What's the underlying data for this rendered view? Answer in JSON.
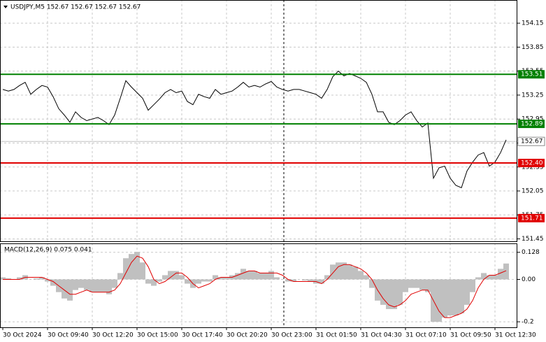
{
  "chart_data": [
    {
      "type": "line",
      "title": "USDJPY,M5  152.67 152.67 152.67 152.67",
      "color": "#000000",
      "values": [
        153.32,
        153.3,
        153.32,
        153.37,
        153.41,
        153.26,
        153.32,
        153.37,
        153.35,
        153.23,
        153.08,
        153.0,
        152.91,
        153.04,
        152.97,
        152.93,
        152.95,
        152.97,
        152.93,
        152.88,
        153.0,
        153.21,
        153.43,
        153.35,
        153.28,
        153.21,
        153.06,
        153.13,
        153.2,
        153.28,
        153.32,
        153.28,
        153.3,
        153.17,
        153.13,
        153.26,
        153.23,
        153.21,
        153.32,
        153.26,
        153.28,
        153.3,
        153.35,
        153.41,
        153.35,
        153.37,
        153.35,
        153.39,
        153.42,
        153.35,
        153.32,
        153.3,
        153.32,
        153.32,
        153.3,
        153.28,
        153.26,
        153.21,
        153.32,
        153.48,
        153.55,
        153.49,
        153.52,
        153.49,
        153.46,
        153.41,
        153.26,
        153.04,
        153.04,
        152.91,
        152.88,
        152.93,
        153.0,
        153.04,
        152.93,
        152.85,
        152.9,
        152.21,
        152.34,
        152.36,
        152.21,
        152.12,
        152.09,
        152.3,
        152.41,
        152.5,
        152.53,
        152.36,
        152.41,
        152.53,
        152.69
      ],
      "xlim": [
        -0.5,
        92
      ],
      "xticks": [
        {
          "value": 0,
          "label": "30 Oct 2024"
        },
        {
          "value": 8,
          "label": "30 Oct 09:40"
        },
        {
          "value": 16,
          "label": "30 Oct 12:20"
        },
        {
          "value": 24,
          "label": "30 Oct 15:00"
        },
        {
          "value": 32,
          "label": "30 Oct 17:40"
        },
        {
          "value": 40,
          "label": "30 Oct 20:20"
        },
        {
          "value": 48,
          "label": "30 Oct 23:00"
        },
        {
          "value": 56,
          "label": "31 Oct 01:50"
        },
        {
          "value": 64,
          "label": "31 Oct 04:30"
        },
        {
          "value": 72,
          "label": "31 Oct 07:10"
        },
        {
          "value": 80,
          "label": "31 Oct 09:50"
        },
        {
          "value": 88,
          "label": "31 Oct 12:30"
        }
      ],
      "ylim": [
        151.42,
        154.44
      ],
      "yticks": [
        154.15,
        153.85,
        153.55,
        153.25,
        152.95,
        152.65,
        152.35,
        152.05,
        151.75,
        151.45
      ],
      "grid": true,
      "separator_x": 50.25,
      "levels": [
        {
          "value": 153.51,
          "color": "#008000"
        },
        {
          "value": 152.89,
          "color": "#008000"
        },
        {
          "value": 152.4,
          "label": "152.40",
          "color": "#e00000"
        },
        {
          "value": 151.71,
          "color": "#e00000"
        }
      ],
      "last": 152.67
    },
    {
      "type": "macd",
      "title": "MACD(12,26,9) 0.075 0.041",
      "histogram": {
        "color": "#c0c0c0",
        "values": [
          0.01,
          0.005,
          0,
          0.01,
          0.02,
          0,
          0.005,
          0.01,
          -0.01,
          -0.03,
          -0.06,
          -0.09,
          -0.1,
          -0.05,
          -0.04,
          -0.05,
          -0.06,
          -0.06,
          -0.06,
          -0.07,
          -0.04,
          0.03,
          0.1,
          0.12,
          0.13,
          0.08,
          -0.02,
          -0.03,
          -0.01,
          0.02,
          0.04,
          0.04,
          0.02,
          -0.02,
          -0.04,
          -0.02,
          -0.01,
          -0.01,
          0.02,
          0.01,
          0.01,
          0.02,
          0.03,
          0.05,
          0.04,
          0.04,
          0.03,
          0.03,
          0.04,
          0.01,
          0,
          -0.01,
          -0.01,
          0,
          -0.005,
          -0.01,
          -0.02,
          -0.02,
          0.02,
          0.07,
          0.08,
          0.08,
          0.07,
          0.06,
          0.04,
          0.02,
          -0.04,
          -0.1,
          -0.12,
          -0.14,
          -0.14,
          -0.12,
          -0.06,
          -0.04,
          -0.04,
          -0.05,
          -0.06,
          -0.2,
          -0.2,
          -0.18,
          -0.17,
          -0.17,
          -0.16,
          -0.12,
          -0.06,
          0.01,
          0.03,
          0.02,
          0.02,
          0.05,
          0.075
        ]
      },
      "signal": {
        "color": "#e00000",
        "values": [
          0,
          0,
          0,
          0,
          0.01,
          0.01,
          0.01,
          0.01,
          0,
          -0.01,
          -0.03,
          -0.05,
          -0.07,
          -0.07,
          -0.06,
          -0.05,
          -0.06,
          -0.06,
          -0.06,
          -0.06,
          -0.05,
          -0.02,
          0.03,
          0.08,
          0.11,
          0.1,
          0.06,
          0,
          -0.02,
          -0.01,
          0.01,
          0.03,
          0.03,
          0.01,
          -0.02,
          -0.04,
          -0.03,
          -0.02,
          0,
          0.01,
          0.01,
          0.01,
          0.02,
          0.03,
          0.04,
          0.04,
          0.03,
          0.03,
          0.03,
          0.03,
          0.02,
          0,
          -0.01,
          -0.01,
          -0.01,
          -0.01,
          -0.01,
          -0.02,
          0,
          0.03,
          0.06,
          0.07,
          0.07,
          0.06,
          0.05,
          0.03,
          0,
          -0.05,
          -0.09,
          -0.12,
          -0.13,
          -0.12,
          -0.1,
          -0.07,
          -0.06,
          -0.05,
          -0.05,
          -0.1,
          -0.15,
          -0.18,
          -0.18,
          -0.17,
          -0.16,
          -0.14,
          -0.1,
          -0.04,
          0,
          0.02,
          0.02,
          0.03,
          0.041
        ]
      },
      "ylim": [
        -0.226,
        0.17
      ],
      "yticks": [
        0.128,
        {
          "value": 0,
          "label": "0.00"
        },
        -0.2
      ]
    }
  ]
}
